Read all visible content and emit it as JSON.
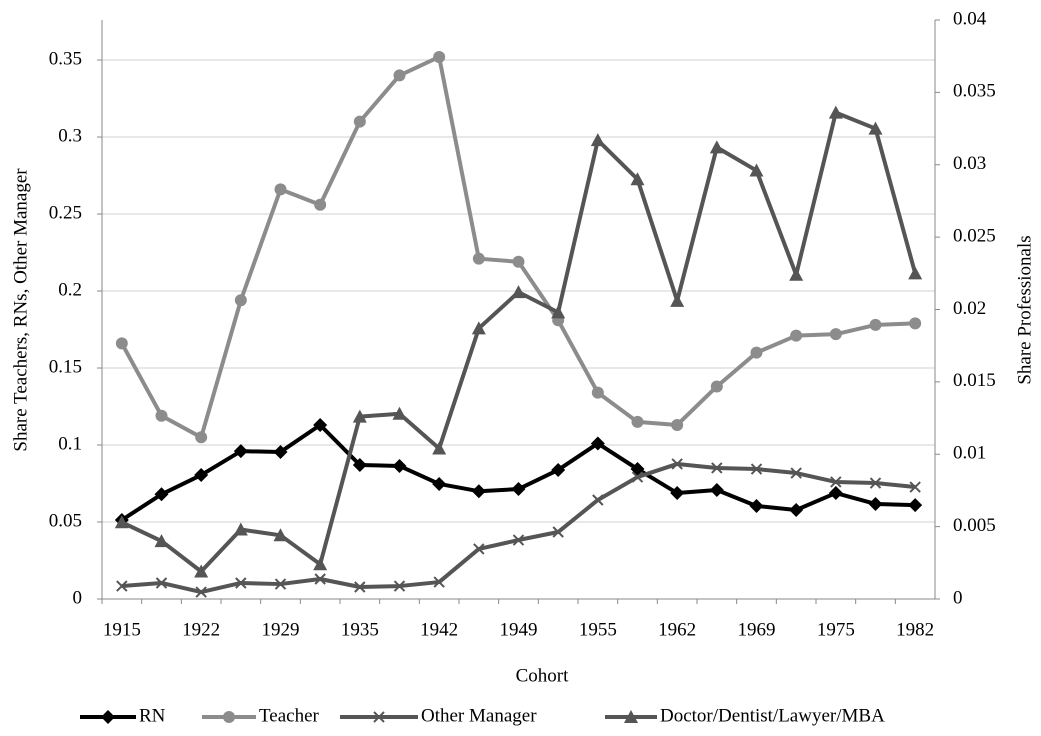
{
  "chart_data": {
    "type": "line",
    "x_label": "Cohort",
    "y_label": "Share Teachers, RNs, Other Manager",
    "y2_label": "Share Professionals",
    "categories": [
      "1915",
      null,
      "1922",
      null,
      "1929",
      null,
      "1935",
      null,
      "1942",
      null,
      "1949",
      null,
      "1955",
      null,
      "1962",
      null,
      "1969",
      null,
      "1975",
      null,
      "1982"
    ],
    "ylim": [
      0,
      0.376
    ],
    "yticks": [
      0,
      0.05,
      0.1,
      0.15,
      0.2,
      0.25,
      0.3,
      0.35
    ],
    "y2lim": [
      0,
      0.04
    ],
    "y2ticks": [
      0,
      0.005,
      0.01,
      0.015,
      0.02,
      0.025,
      0.03,
      0.035,
      0.04
    ],
    "grid": true,
    "legend": "bottom",
    "series": [
      {
        "name": "RN",
        "color": "#000000",
        "marker": "diamond",
        "values": [
          0.0513,
          0.068,
          0.0805,
          0.096,
          0.0955,
          0.113,
          0.087,
          0.0864,
          0.0747,
          0.07,
          0.0714,
          0.0838,
          0.101,
          0.0844,
          0.0688,
          0.0708,
          0.0604,
          0.0578,
          0.0688,
          0.0617,
          0.061
        ]
      },
      {
        "name": "Teacher",
        "color": "#8c8c8c",
        "marker": "circle",
        "values": [
          0.166,
          0.119,
          0.105,
          0.194,
          0.266,
          0.256,
          0.31,
          0.34,
          0.352,
          0.221,
          0.219,
          0.181,
          0.134,
          0.115,
          0.113,
          0.138,
          0.16,
          0.171,
          0.172,
          0.178,
          0.179
        ]
      },
      {
        "name": "Other Manager",
        "color": "#555555",
        "marker": "x",
        "values": [
          0.0084,
          0.0104,
          0.0045,
          0.0104,
          0.0097,
          0.013,
          0.0078,
          0.0084,
          0.011,
          0.0325,
          0.0383,
          0.0435,
          0.0643,
          0.0792,
          0.0877,
          0.0851,
          0.0844,
          0.0818,
          0.076,
          0.0753,
          0.0727
        ]
      },
      {
        "name": "Doctor/Dentist/Lawyer/MBA",
        "color": "#555555",
        "marker": "triangle",
        "axis": "y2",
        "values": [
          0.0053,
          0.004,
          0.0019,
          0.0048,
          0.0044,
          0.0024,
          0.0126,
          0.0128,
          0.0104,
          0.0187,
          0.0212,
          0.0198,
          0.0317,
          0.029,
          0.0206,
          0.0312,
          0.0296,
          0.0224,
          0.0336,
          0.0325,
          0.0225
        ]
      }
    ]
  }
}
